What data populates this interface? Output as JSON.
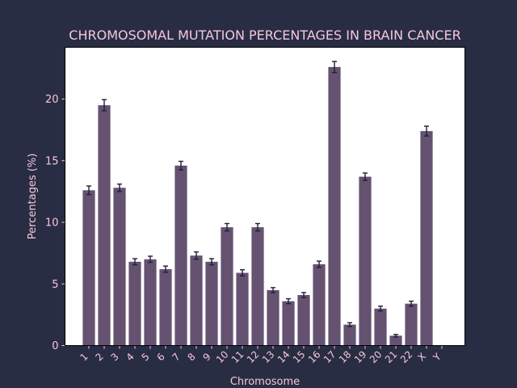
{
  "colors": {
    "background": "#282d44",
    "plot_area": "#ffffff",
    "bar": "#655271",
    "error_bar": "#1f1f38",
    "text": "#f7c6d9"
  },
  "chart_data": {
    "type": "bar",
    "title": "CHROMOSOMAL MUTATION PERCENTAGES IN BRAIN CANCER",
    "xlabel": "Chromosome",
    "ylabel": "Percentages (%)",
    "categories": [
      "1",
      "2",
      "3",
      "4",
      "5",
      "6",
      "7",
      "8",
      "9",
      "10",
      "11",
      "12",
      "13",
      "14",
      "15",
      "16",
      "17",
      "18",
      "19",
      "20",
      "21",
      "22",
      "X",
      "Y"
    ],
    "values": [
      12.6,
      19.5,
      12.8,
      6.8,
      7.0,
      6.2,
      14.6,
      7.3,
      6.8,
      9.6,
      5.9,
      9.6,
      4.5,
      3.6,
      4.1,
      6.6,
      22.6,
      1.7,
      13.7,
      3.0,
      0.8,
      3.4,
      17.4,
      0.0
    ],
    "errors": [
      0.35,
      0.45,
      0.3,
      0.25,
      0.25,
      0.25,
      0.35,
      0.3,
      0.25,
      0.3,
      0.25,
      0.3,
      0.2,
      0.2,
      0.2,
      0.25,
      0.45,
      0.15,
      0.3,
      0.2,
      0.1,
      0.2,
      0.4,
      0.0
    ],
    "ylim": [
      0,
      24.2
    ],
    "yticks": [
      0,
      5,
      10,
      15,
      20
    ],
    "grid": false,
    "legend": "none"
  }
}
